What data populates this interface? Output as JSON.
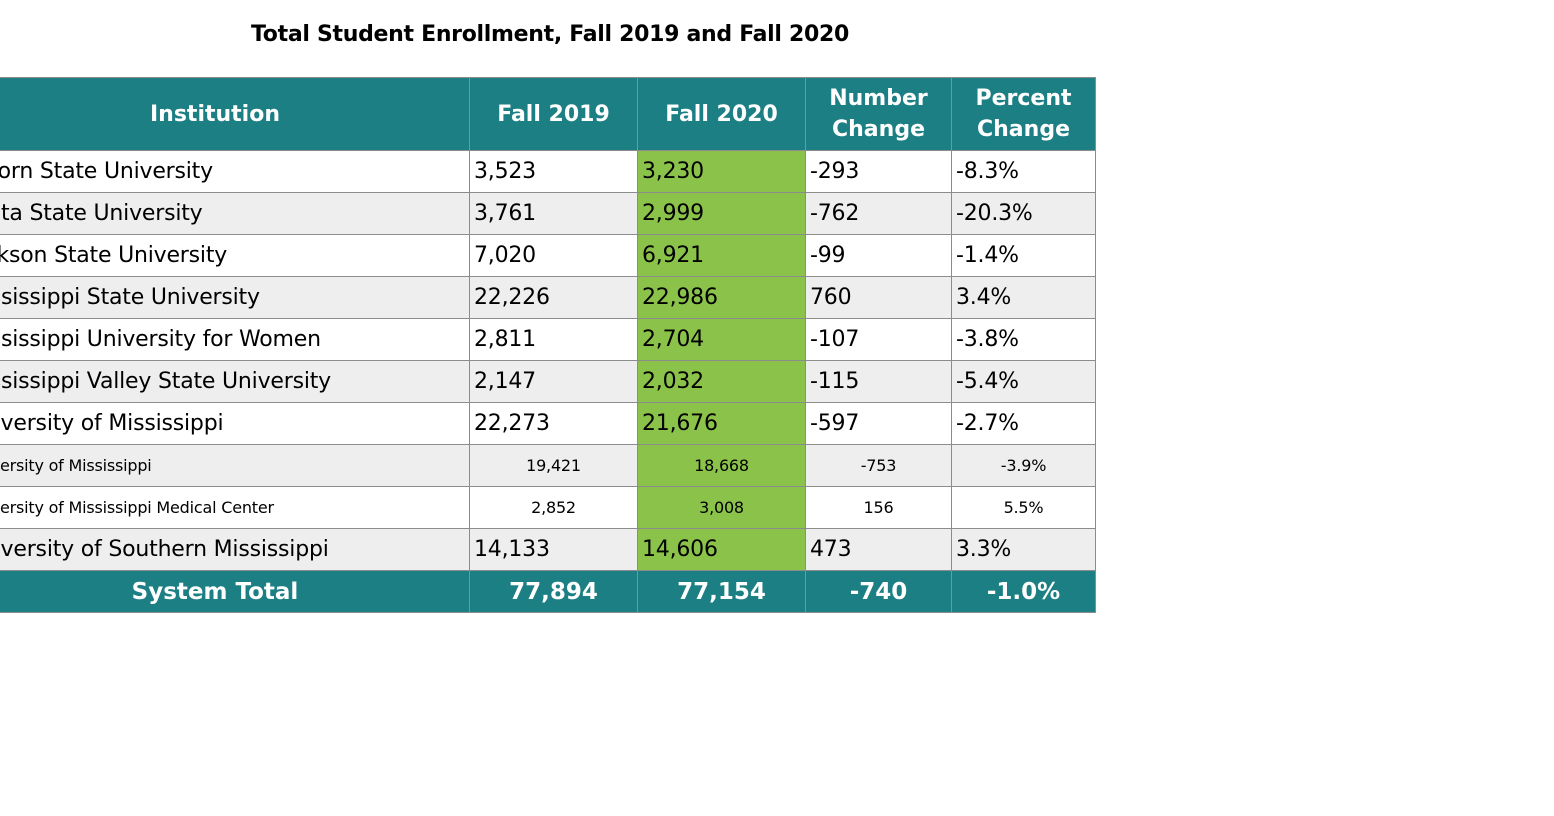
{
  "title": "Total Student Enrollment, Fall 2019 and Fall 2020",
  "colors": {
    "header_bg": "#1b7f84",
    "fall2020_highlight": "#8bc34a",
    "row_alt": "#eeeeee"
  },
  "headers": {
    "institution": "Institution",
    "fall2019": "Fall 2019",
    "fall2020": "Fall 2020",
    "number_change": "Number Change",
    "percent_change": "Percent Change"
  },
  "rows": [
    {
      "institution": "Alcorn State University",
      "fall2019": "3,523",
      "fall2020": "3,230",
      "number_change": "-293",
      "percent_change": "-8.3%"
    },
    {
      "institution": "Delta State University",
      "fall2019": "3,761",
      "fall2020": "2,999",
      "number_change": "-762",
      "percent_change": "-20.3%"
    },
    {
      "institution": "Jackson State University",
      "fall2019": "7,020",
      "fall2020": "6,921",
      "number_change": "-99",
      "percent_change": "-1.4%"
    },
    {
      "institution": "Mississippi State University",
      "fall2019": "22,226",
      "fall2020": "22,986",
      "number_change": "760",
      "percent_change": "3.4%"
    },
    {
      "institution": "Mississippi University for Women",
      "fall2019": "2,811",
      "fall2020": "2,704",
      "number_change": "-107",
      "percent_change": "-3.8%"
    },
    {
      "institution": "Mississippi Valley State University",
      "fall2019": "2,147",
      "fall2020": "2,032",
      "number_change": "-115",
      "percent_change": "-5.4%"
    },
    {
      "institution": "University of Mississippi",
      "fall2019": "22,273",
      "fall2020": "21,676",
      "number_change": "-597",
      "percent_change": "-2.7%"
    },
    {
      "institution": "University of Mississippi",
      "fall2019": "19,421",
      "fall2020": "18,668",
      "number_change": "-753",
      "percent_change": "-3.9%"
    },
    {
      "institution": "University of Mississippi Medical Center",
      "fall2019": "2,852",
      "fall2020": "3,008",
      "number_change": "156",
      "percent_change": "5.5%"
    },
    {
      "institution": "University of Southern Mississippi",
      "fall2019": "14,133",
      "fall2020": "14,606",
      "number_change": "473",
      "percent_change": "3.3%"
    }
  ],
  "total": {
    "label": "System Total",
    "fall2019": "77,894",
    "fall2020": "77,154",
    "number_change": "-740",
    "percent_change": "-1.0%"
  }
}
